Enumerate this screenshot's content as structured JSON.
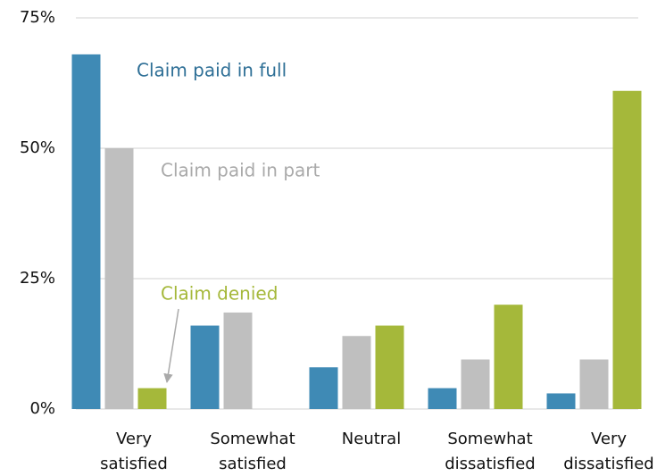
{
  "chart_data": {
    "type": "bar",
    "categories": [
      "Very satisfied",
      "Somewhat satisfied",
      "Neutral",
      "Somewhat dissatisfied",
      "Very dissatisfied"
    ],
    "series": [
      {
        "name": "Claim paid in full",
        "color": "#3f8ab5",
        "values": [
          68,
          16,
          8,
          4,
          3
        ]
      },
      {
        "name": "Claim paid in part",
        "color": "#bfbfbf",
        "values": [
          50,
          18.5,
          14,
          9.5,
          9.5
        ]
      },
      {
        "name": "Claim denied",
        "color": "#a5b83a",
        "values": [
          4,
          null,
          16,
          20,
          61
        ]
      }
    ],
    "ylim": [
      0,
      75
    ],
    "yticks": [
      {
        "value": 0,
        "label": "0%"
      },
      {
        "value": 25,
        "label": "25%"
      },
      {
        "value": 50,
        "label": "50%"
      },
      {
        "value": 75,
        "label": "75%"
      }
    ],
    "grid": true
  }
}
